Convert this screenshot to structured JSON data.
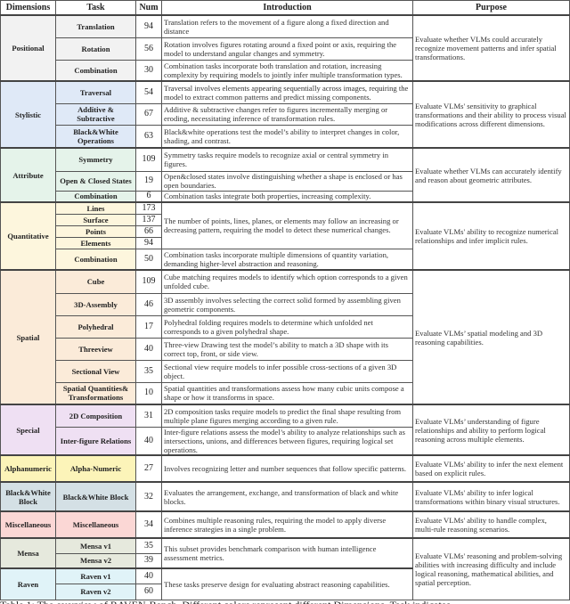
{
  "headers": [
    "Dimensions",
    "Task",
    "Num",
    "Introduction",
    "Purpose"
  ],
  "groups": [
    {
      "dimension": "Positional",
      "color": "#f2f2f2",
      "purpose": "Evaluate whether VLMs could accurately recognize movement patterns and infer spatial transformations.",
      "tasks": [
        {
          "task": "Translation",
          "num": "94",
          "intro": "Translation refers to the movement of a figure along a fixed direction and distance",
          "intro_span": 1
        },
        {
          "task": "Rotation",
          "num": "56",
          "intro": "Rotation involves figures rotating around a fixed point or axis, requiring the model to understand angular changes and symmetry.",
          "intro_span": 1
        },
        {
          "task": "Combination",
          "num": "30",
          "intro": "Combination tasks incorporate both translation and rotation, increasing complexity by requiring models to jointly infer multiple transformation types.",
          "intro_span": 1
        }
      ]
    },
    {
      "dimension": "Stylistic",
      "color": "#dfe9f7",
      "purpose": "Evaluate VLMs' sensitivity to graphical transformations and their ability to process visual modifications across different dimensions.",
      "tasks": [
        {
          "task": "Traversal",
          "num": "54",
          "intro": "Traversal involves elements appearing sequentially across images, requiring the model to extract common patterns and predict missing components.",
          "intro_span": 1
        },
        {
          "task": "Additive & Subtractive",
          "num": "67",
          "intro": "Additive & subtractive changes refer to figures incrementally merging or eroding, necessitating inference of transformation rules.",
          "intro_span": 1
        },
        {
          "task": "Black&White Operations",
          "num": "63",
          "intro": "Black&white operations test the model’s ability to interpret changes in color, shading, and contrast.",
          "intro_span": 1
        }
      ]
    },
    {
      "dimension": "Attribute",
      "color": "#e5f3ea",
      "purpose": "Evaluate whether VLMs can accurately identify and reason about geometric attributes.",
      "tasks": [
        {
          "task": "Symmetry",
          "num": "109",
          "intro": "Symmetry tasks require models to recognize axial or central symmetry in figures.",
          "intro_span": 1
        },
        {
          "task": "Open & Closed States",
          "num": "19",
          "intro": "Open&closed states involve distinguishing whether a shape is enclosed or has open boundaries.",
          "intro_span": 1
        },
        {
          "task": "Combination",
          "num": "6",
          "intro": "Combination tasks integrate both properties, increasing complexity.",
          "intro_span": 1
        }
      ]
    },
    {
      "dimension": "Quantitative",
      "color": "#fdf6dd",
      "purpose": "Evaluate VLMs' ability to recognize numerical relationships and infer implicit rules.",
      "tasks": [
        {
          "task": "Lines",
          "num": "173",
          "intro": "The number of points, lines, planes, or elements may follow an increasing or decreasing pattern, requiring the model to detect these numerical changes.",
          "intro_span": 4
        },
        {
          "task": "Surface",
          "num": "137"
        },
        {
          "task": "Points",
          "num": "66"
        },
        {
          "task": "Elements",
          "num": "94"
        },
        {
          "task": "Combination",
          "num": "50",
          "intro": "Combination tasks incorporate multiple dimensions of quantity variation, demanding higher-level abstraction and reasoning.",
          "intro_span": 1
        }
      ]
    },
    {
      "dimension": "Spatial",
      "color": "#fbebd9",
      "purpose": "Evaluate VLMs’ spatial modeling and 3D reasoning capabilities.",
      "tasks": [
        {
          "task": "Cube",
          "num": "109",
          "intro": "Cube matching requires models to identify which option corresponds to a given unfolded cube.",
          "intro_span": 1
        },
        {
          "task": "3D-Assembly",
          "num": "46",
          "intro": "3D assembly involves selecting the correct solid formed by assembling given geometric components.",
          "intro_span": 1
        },
        {
          "task": "Polyhedral",
          "num": "17",
          "intro": "Polyhedral folding requires models to determine which unfolded net corresponds to a given polyhedral shape.",
          "intro_span": 1
        },
        {
          "task": "Threeview",
          "num": "40",
          "intro": "Three-view Drawing test the model’s ability to match a 3D shape with its correct top, front, or side view.",
          "intro_span": 1
        },
        {
          "task": "Sectional View",
          "num": "35",
          "intro": "Sectional view require models to infer possible cross-sections of a given 3D object.",
          "intro_span": 1
        },
        {
          "task": "Spatial Quantities& Transformations",
          "num": "10",
          "intro": "Spatial quantities and transformations assess how many cubic units compose a shape or how it transforms in space.",
          "intro_span": 1
        }
      ]
    },
    {
      "dimension": "Special",
      "color": "#efe0f3",
      "purpose": "Evaluate VLMs’ understanding of figure relationships and ability to perform logical reasoning across multiple elements.",
      "tasks": [
        {
          "task": "2D Composition",
          "num": "31",
          "intro": "2D composition tasks require models to predict the final shape resulting from multiple plane figures merging according to a given rule.",
          "intro_span": 1
        },
        {
          "task": "Inter-figure Relations",
          "num": "40",
          "intro": "Inter-figure relations assess the model’s ability to analyze relationships such as intersections, unions, and differences between figures, requiring logical set operations.",
          "intro_span": 1
        }
      ]
    },
    {
      "dimension": "Alphanumeric",
      "color": "#fcf4b9",
      "purpose": "Evaluate VLMs' ability to infer the next element based on explicit rules.",
      "tasks": [
        {
          "task": "Alpha-Numeric",
          "num": "27",
          "intro": "Involves recognizing letter and number sequences that follow specific patterns.",
          "intro_span": 1
        }
      ]
    },
    {
      "dimension": "Black&White Block",
      "color": "#d4e0e5",
      "purpose": "Evaluate VLMs' ability to infer logical transformations within binary visual structures.",
      "tasks": [
        {
          "task": "Black&White Block",
          "num": "32",
          "intro": "Evaluates the arrangement, exchange, and transformation of black and white blocks.",
          "intro_span": 1
        }
      ]
    },
    {
      "dimension": "Miscellaneous",
      "color": "#fbd7d5",
      "purpose": "Evaluate VLMs' ability to handle complex, multi-rule reasoning scenarios.",
      "tasks": [
        {
          "task": "Miscellaneous",
          "num": "34",
          "intro": "Combines multiple reasoning rules, requiring the model to apply diverse inference strategies in a single problem.",
          "intro_span": 1
        }
      ]
    },
    {
      "dimension": "Mensa",
      "color": "#e6e9dd",
      "purpose": "Evaluate VLMs' reasoning and problem-solving abilities with increasing difficulty and  include logical reasoning, mathematical abilities, and spatial perception.",
      "purpose_span_groups": 2,
      "tasks": [
        {
          "task": "Mensa v1",
          "num": "35",
          "intro": "This subset provides benchmark comparison with human intelligence assessment metrics.",
          "intro_span": 2
        },
        {
          "task": "Mensa v2",
          "num": "39"
        }
      ]
    },
    {
      "dimension": "Raven",
      "color": "#e0f3f8",
      "purpose_shared": true,
      "tasks": [
        {
          "task": "Raven v1",
          "num": "40",
          "intro": "These tasks preserve design for evaluating abstract reasoning capabilities.",
          "intro_span": 2
        },
        {
          "task": "Raven v2",
          "num": "60"
        }
      ]
    }
  ],
  "caption": "Table 1: The overview of RAVEN-Bench. Different colors represent different Dimensions. Task indicates"
}
